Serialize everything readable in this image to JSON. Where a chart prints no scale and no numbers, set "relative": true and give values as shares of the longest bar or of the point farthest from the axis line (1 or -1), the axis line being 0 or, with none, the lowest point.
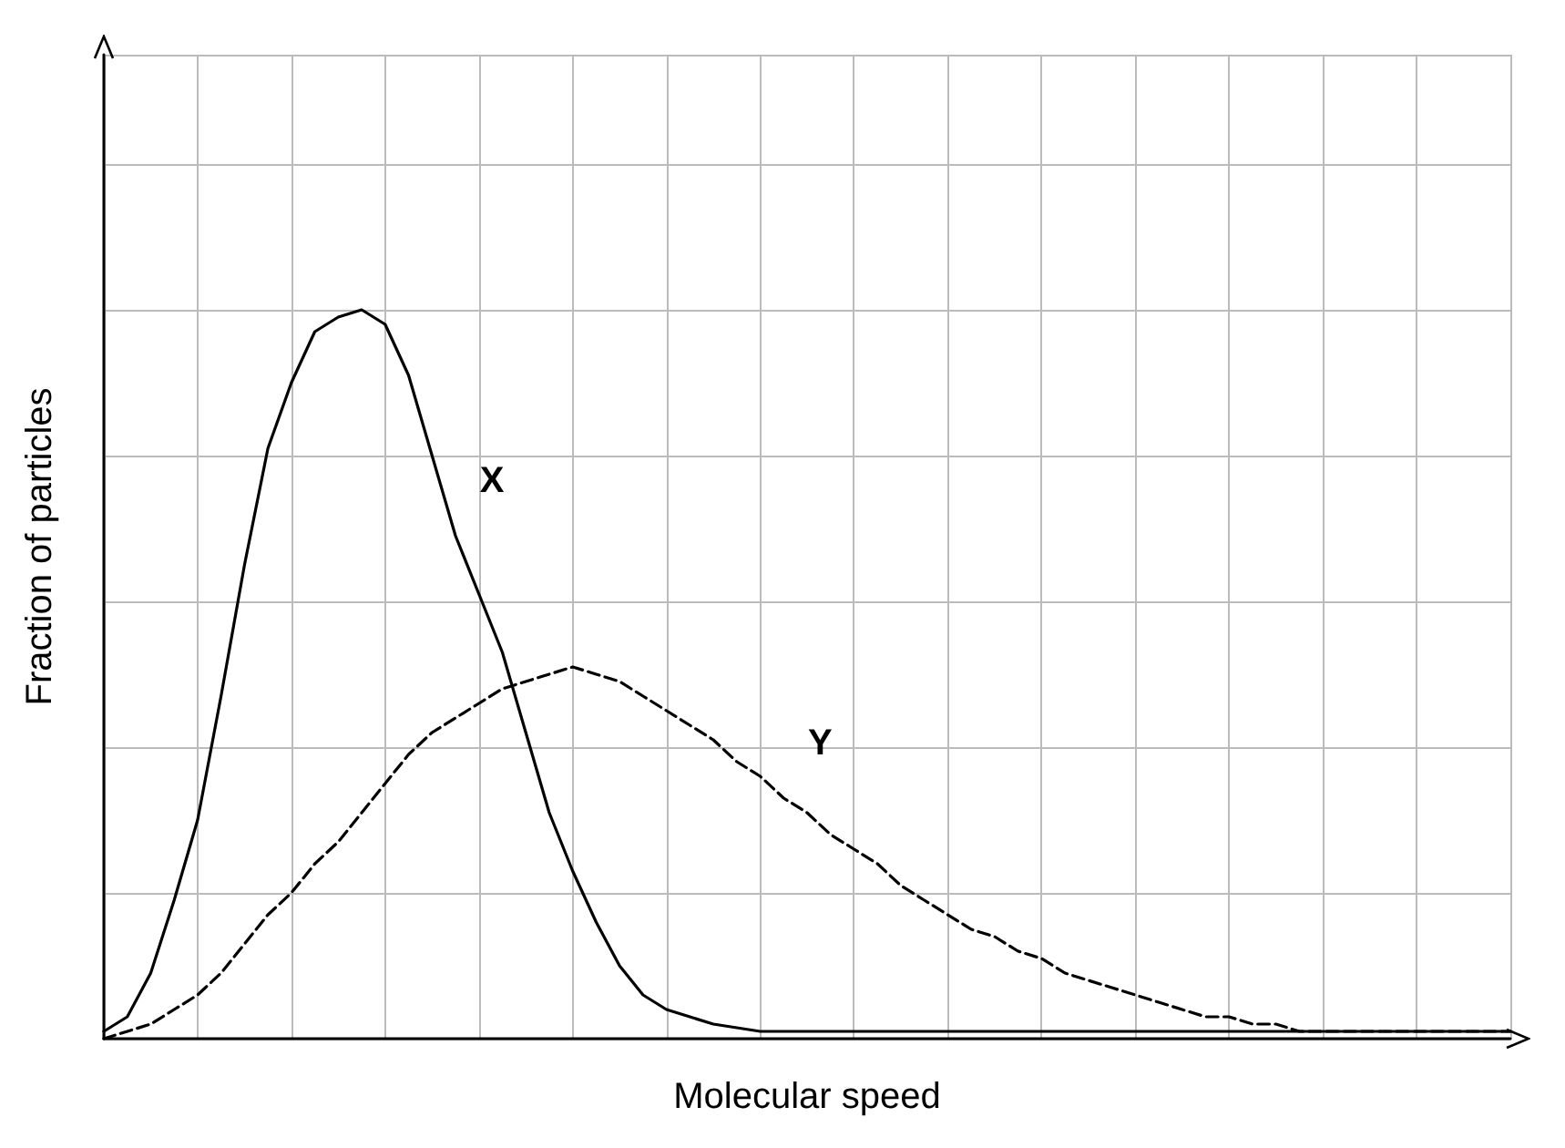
{
  "chart_data": {
    "type": "line",
    "relative": true,
    "xlabel": "Molecular speed",
    "ylabel": "Fraction of particles",
    "grid": true,
    "marker": "none",
    "legend": false,
    "categories": [
      null,
      null,
      null,
      null,
      null,
      null,
      null,
      null,
      null,
      null,
      null,
      null,
      null,
      null,
      null,
      null,
      null,
      null,
      null,
      null,
      null,
      null,
      null,
      null,
      null,
      null,
      null,
      null,
      null,
      null,
      null,
      null,
      null,
      null,
      null,
      null,
      null,
      null,
      null,
      null,
      null,
      null,
      null,
      null,
      null,
      null,
      null,
      null,
      null,
      null,
      null,
      null,
      null,
      null,
      null,
      null,
      null,
      null,
      null,
      null,
      null
    ],
    "series": [
      {
        "name": "X",
        "color": "#000000",
        "line_style": "solid",
        "values": [
          0.01,
          0.03,
          0.09,
          0.19,
          0.3,
          0.47,
          0.65,
          0.81,
          0.9,
          0.97,
          0.99,
          1,
          0.98,
          0.91,
          0.8,
          0.69,
          0.61,
          0.53,
          0.42,
          0.31,
          0.23,
          0.16,
          0.1,
          0.06,
          0.04,
          0.03,
          0.02,
          0.015,
          0.01,
          0.01,
          0.01,
          0.01,
          0.01,
          0.01,
          0.01,
          0.01,
          0.01,
          0.01,
          0.01,
          0.01,
          0.01,
          0.01,
          0.01,
          0.01,
          0.01,
          0.01,
          0.01,
          0.01,
          0.01,
          0.01,
          0.01,
          0.01,
          0.01,
          0.01,
          0.01,
          0.01,
          0.01,
          0.01,
          0.01,
          0.01,
          0.01
        ]
      },
      {
        "name": "Y",
        "color": "#000000",
        "line_style": "dashed",
        "values": [
          0,
          0.01,
          0.02,
          0.04,
          0.06,
          0.09,
          0.13,
          0.17,
          0.2,
          0.24,
          0.27,
          0.31,
          0.35,
          0.39,
          0.42,
          0.44,
          0.46,
          0.48,
          0.49,
          0.5,
          0.51,
          0.5,
          0.49,
          0.47,
          0.45,
          0.43,
          0.41,
          0.38,
          0.36,
          0.33,
          0.31,
          0.28,
          0.26,
          0.24,
          0.21,
          0.19,
          0.17,
          0.15,
          0.14,
          0.12,
          0.11,
          0.09,
          0.08,
          0.07,
          0.06,
          0.05,
          0.04,
          0.03,
          0.03,
          0.02,
          0.02,
          0.01,
          0.01,
          0.01,
          0.01,
          0.01,
          0.01,
          0.01,
          0.01,
          0.01,
          0.01
        ]
      }
    ]
  }
}
